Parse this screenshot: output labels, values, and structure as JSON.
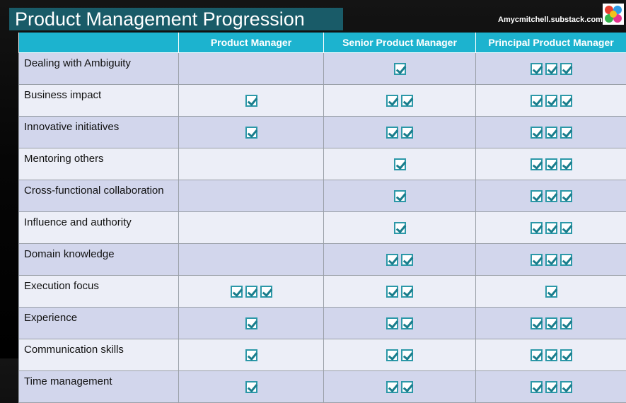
{
  "title": "Product Management Progression",
  "site": "Amycmitchell.substack.com",
  "colors": {
    "header": "#1cb3cf",
    "title_bg": "#195b68",
    "check": "#1a7d8c"
  },
  "table": {
    "corner": "",
    "columns": [
      "Product Manager",
      "Senior Product Manager",
      "Principal Product Manager"
    ],
    "rows": [
      {
        "label": "Dealing with Ambiguity",
        "checks": [
          0,
          1,
          3
        ]
      },
      {
        "label": "Business impact",
        "checks": [
          1,
          2,
          3
        ]
      },
      {
        "label": "Innovative initiatives",
        "checks": [
          1,
          2,
          3
        ]
      },
      {
        "label": "Mentoring others",
        "checks": [
          0,
          1,
          3
        ]
      },
      {
        "label": "Cross-functional collaboration",
        "checks": [
          0,
          1,
          3
        ]
      },
      {
        "label": "Influence and authority",
        "checks": [
          0,
          1,
          3
        ]
      },
      {
        "label": "Domain knowledge",
        "checks": [
          0,
          2,
          3
        ]
      },
      {
        "label": "Execution focus",
        "checks": [
          3,
          2,
          1
        ]
      },
      {
        "label": "Experience",
        "checks": [
          1,
          2,
          3
        ]
      },
      {
        "label": "Communication skills",
        "checks": [
          1,
          2,
          3
        ]
      },
      {
        "label": "Time management",
        "checks": [
          1,
          2,
          3
        ]
      }
    ]
  }
}
